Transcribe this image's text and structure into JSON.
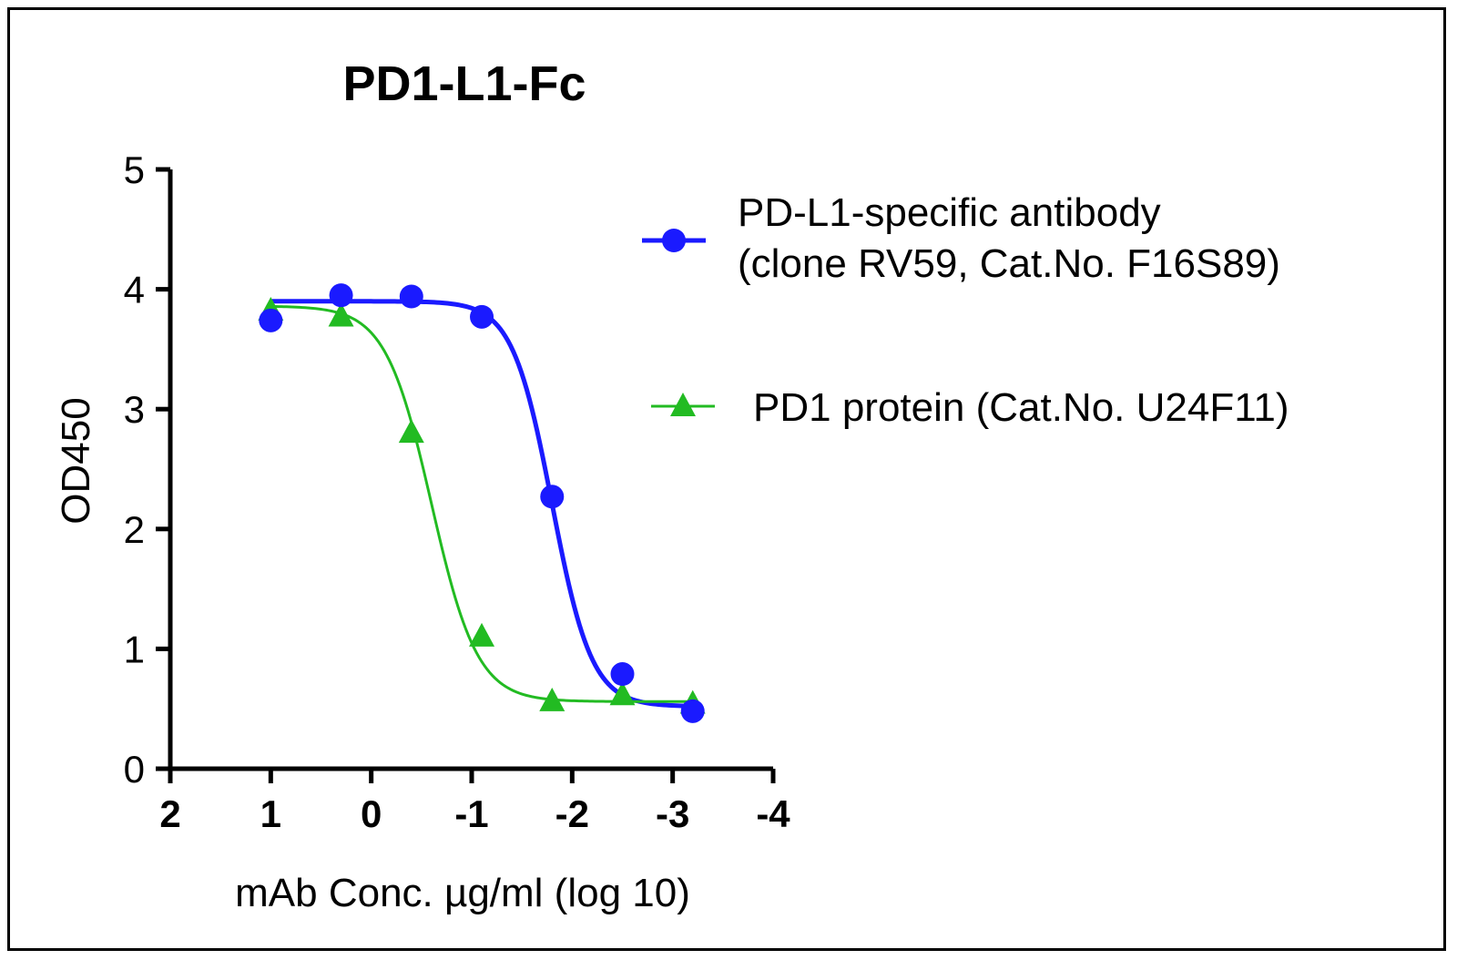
{
  "chart_data": {
    "type": "scatter",
    "title": "PD1-L1-Fc",
    "xlabel": "mAb Conc. µg/ml (log 10)",
    "ylabel": "OD450",
    "xlim": [
      2,
      -4
    ],
    "ylim": [
      0,
      5
    ],
    "x_reversed": true,
    "x_ticks": [
      2,
      1,
      0,
      -1,
      -2,
      -3,
      -4
    ],
    "x_tick_labels": [
      "2",
      "1",
      "0",
      "-1",
      "-2",
      "-3",
      "-4"
    ],
    "y_ticks": [
      0,
      1,
      2,
      3,
      4,
      5
    ],
    "y_tick_labels": [
      "0",
      "1",
      "2",
      "3",
      "4",
      "5"
    ],
    "grid": false,
    "legend_position": "top-right",
    "series": [
      {
        "name": "PD-L1-specific antibody",
        "name_line2": "(clone RV59, Cat.No. F16S89)",
        "marker": "circle",
        "color": "#1a1aff",
        "x": [
          1.0,
          0.3,
          -0.4,
          -1.1,
          -1.8,
          -2.5,
          -3.2
        ],
        "y": [
          3.74,
          3.95,
          3.94,
          3.77,
          2.27,
          0.79,
          0.48
        ],
        "fit": {
          "top": 3.9,
          "bottom": 0.52,
          "logEC50": -1.8,
          "hill": 2.2
        }
      },
      {
        "name": "PD1 protein (Cat.No. U24F11)",
        "marker": "triangle",
        "color": "#22bb22",
        "x": [
          1.0,
          0.3,
          -0.4,
          -1.1,
          -1.8,
          -2.5,
          -3.2
        ],
        "y": [
          3.83,
          3.78,
          2.81,
          1.11,
          0.57,
          0.62,
          0.55
        ],
        "fit": {
          "top": 3.86,
          "bottom": 0.56,
          "logEC50": -0.6,
          "hill": 1.9
        }
      }
    ]
  }
}
